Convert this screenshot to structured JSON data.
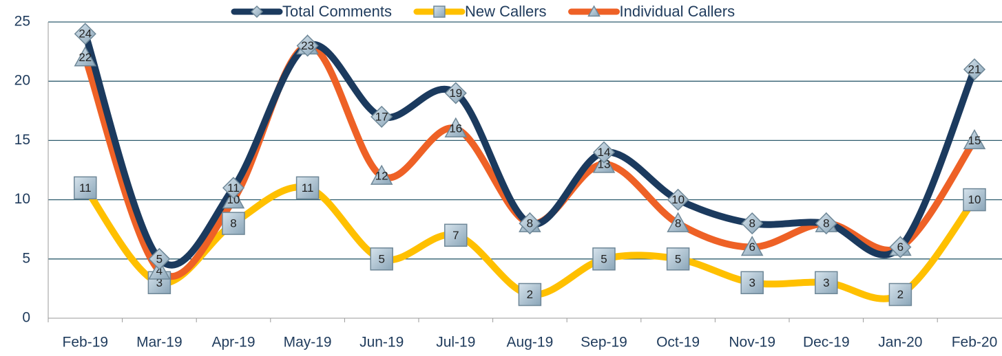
{
  "chart_data": {
    "type": "line",
    "categories": [
      "Feb-19",
      "Mar-19",
      "Apr-19",
      "May-19",
      "Jun-19",
      "Jul-19",
      "Aug-19",
      "Sep-19",
      "Oct-19",
      "Nov-19",
      "Dec-19",
      "Jan-20",
      "Feb-20"
    ],
    "series": [
      {
        "name": "Total Comments",
        "color": "#1b3a5e",
        "marker": "diamond",
        "values": [
          24,
          5,
          11,
          23,
          17,
          19,
          8,
          14,
          10,
          8,
          8,
          6,
          21
        ]
      },
      {
        "name": "New Callers",
        "color": "#ffc000",
        "marker": "square",
        "values": [
          11,
          3,
          8,
          11,
          5,
          7,
          2,
          5,
          5,
          3,
          3,
          2,
          10
        ]
      },
      {
        "name": "Individual Callers",
        "color": "#ee6126",
        "marker": "triangle",
        "values": [
          22,
          4,
          10,
          23,
          12,
          16,
          8,
          13,
          8,
          6,
          8,
          6,
          15
        ]
      }
    ],
    "ylim": [
      0,
      25
    ],
    "yticks": [
      0,
      5,
      10,
      15,
      20,
      25
    ],
    "grid": true,
    "legend": "top"
  }
}
